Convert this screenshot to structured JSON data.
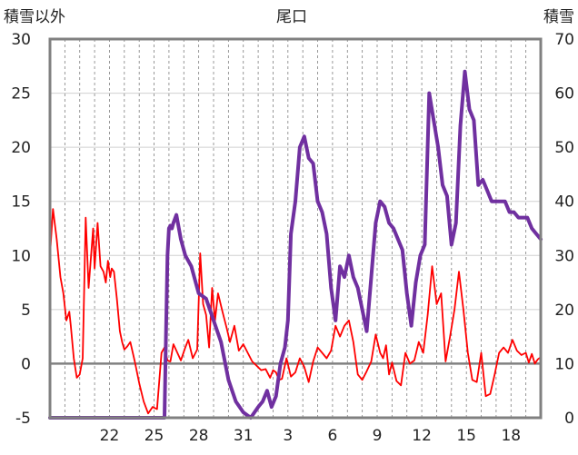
{
  "chart_data": {
    "type": "line",
    "title": "尾口",
    "left_axis_title": "積雪以外",
    "right_axis_title": "積雪",
    "x_tick_labels": [
      "22",
      "25",
      "28",
      "31",
      "3",
      "6",
      "9",
      "12",
      "15",
      "18"
    ],
    "x_tick_days": [
      4,
      7,
      10,
      13,
      16,
      19,
      22,
      25,
      28,
      31
    ],
    "x_range_days": [
      0,
      33
    ],
    "y_left": {
      "min": -5,
      "max": 30,
      "ticks": [
        -5,
        0,
        5,
        10,
        15,
        20,
        25,
        30
      ]
    },
    "y_right": {
      "min": 0,
      "max": 70,
      "ticks": [
        0,
        10,
        20,
        30,
        40,
        50,
        60,
        70
      ]
    },
    "grid": {
      "horizontal": true,
      "vertical_dashed": true
    },
    "colors": {
      "snow_series": "#7030a0",
      "temperature_series": "#ff0000",
      "zero_line": "#808080",
      "frame": "#808080"
    },
    "series": [
      {
        "axis": "left",
        "color": "#ff0000",
        "x": [
          0.0,
          0.2,
          0.45,
          0.7,
          0.9,
          1.1,
          1.3,
          1.4,
          1.6,
          1.8,
          2.0,
          2.2,
          2.4,
          2.6,
          2.9,
          3.0,
          3.2,
          3.4,
          3.6,
          3.75,
          3.9,
          4.05,
          4.15,
          4.3,
          4.5,
          4.7,
          4.85,
          5.0,
          5.2,
          5.4,
          5.7,
          6.0,
          6.3,
          6.6,
          6.9,
          7.2,
          7.5,
          7.7,
          7.9,
          8.1,
          8.3,
          8.5,
          8.8,
          9.1,
          9.3,
          9.6,
          9.9,
          10.1,
          10.3,
          10.5,
          10.7,
          10.9,
          11.1,
          11.3,
          11.6,
          11.9,
          12.1,
          12.4,
          12.7,
          13.0,
          13.3,
          13.6,
          13.9,
          14.2,
          14.5,
          14.8,
          15.0,
          15.2,
          15.4,
          15.6,
          15.9,
          16.2,
          16.5,
          16.8,
          17.1,
          17.4,
          17.7,
          18.0,
          18.3,
          18.6,
          18.9,
          19.2,
          19.5,
          19.8,
          20.1,
          20.4,
          20.7,
          21.0,
          21.3,
          21.6,
          21.9,
          22.2,
          22.4,
          22.6,
          22.8,
          23.0,
          23.3,
          23.6,
          23.9,
          24.2,
          24.5,
          24.8,
          25.1,
          25.4,
          25.7,
          26.0,
          26.3,
          26.6,
          26.9,
          27.2,
          27.5,
          27.8,
          28.1,
          28.4,
          28.7,
          29.0,
          29.3,
          29.6,
          29.9,
          30.2,
          30.5,
          30.8,
          31.1,
          31.4,
          31.7,
          32.0,
          32.2,
          32.4,
          32.6,
          32.8,
          33.0
        ],
        "y": [
          10.0,
          14.3,
          11.5,
          8.0,
          6.5,
          4.0,
          4.8,
          3.5,
          0.5,
          -1.3,
          -1.0,
          0.5,
          13.5,
          7.0,
          12.5,
          8.8,
          13.0,
          9.0,
          8.5,
          7.5,
          9.5,
          8.0,
          8.8,
          8.5,
          6.0,
          3.0,
          2.0,
          1.3,
          1.6,
          2.0,
          0.2,
          -1.8,
          -3.5,
          -4.6,
          -4.0,
          -4.2,
          1.0,
          1.5,
          0.3,
          0.2,
          1.8,
          1.2,
          0.3,
          1.5,
          2.2,
          0.5,
          1.3,
          10.2,
          5.5,
          4.5,
          1.5,
          7.0,
          4.0,
          6.5,
          4.8,
          3.2,
          2.0,
          3.5,
          1.2,
          1.8,
          1.0,
          0.2,
          -0.2,
          -0.6,
          -0.5,
          -1.3,
          -0.6,
          -0.8,
          -1.5,
          -1.4,
          0.5,
          -1.2,
          -0.8,
          0.5,
          -0.3,
          -1.7,
          0.2,
          1.5,
          1.0,
          0.5,
          1.2,
          3.5,
          2.5,
          3.5,
          4.0,
          2.0,
          -1.0,
          -1.5,
          -0.7,
          0.2,
          2.7,
          1.0,
          0.5,
          1.7,
          -1.0,
          0.1,
          -1.6,
          -2.0,
          1.0,
          0.0,
          0.3,
          2.0,
          1.0,
          4.5,
          9.0,
          5.5,
          6.5,
          0.2,
          2.5,
          5.0,
          8.5,
          5.0,
          1.0,
          -1.5,
          -1.7,
          1.0,
          -3.0,
          -2.8,
          -1.0,
          1.0,
          1.5,
          1.0,
          2.2,
          1.2,
          0.8,
          1.0,
          0.1,
          0.9,
          0.0,
          0.4,
          0.6
        ]
      },
      {
        "axis": "right",
        "color": "#7030a0",
        "x": [
          0.0,
          1.0,
          2.0,
          3.0,
          4.0,
          5.0,
          6.0,
          7.0,
          7.5,
          7.7,
          7.8,
          7.9,
          8.0,
          8.1,
          8.2,
          8.3,
          8.5,
          8.8,
          9.1,
          9.5,
          10.0,
          10.5,
          11.0,
          11.5,
          12.0,
          12.5,
          13.0,
          13.5,
          14.0,
          14.3,
          14.6,
          14.9,
          15.2,
          15.5,
          15.8,
          16.0,
          16.2,
          16.5,
          16.8,
          17.1,
          17.4,
          17.7,
          18.0,
          18.3,
          18.6,
          18.9,
          19.2,
          19.5,
          19.8,
          20.1,
          20.4,
          20.7,
          21.0,
          21.3,
          21.6,
          21.9,
          22.2,
          22.5,
          22.8,
          23.1,
          23.4,
          23.7,
          24.0,
          24.3,
          24.6,
          24.9,
          25.2,
          25.5,
          25.8,
          26.1,
          26.4,
          26.7,
          27.0,
          27.3,
          27.6,
          27.9,
          28.2,
          28.5,
          28.8,
          29.1,
          29.4,
          29.7,
          30.0,
          30.3,
          30.6,
          30.9,
          31.2,
          31.5,
          31.8,
          32.1,
          32.4,
          32.7,
          33.0
        ],
        "y": [
          0.0,
          0.0,
          0.0,
          0.0,
          0.0,
          0.0,
          0.0,
          0.0,
          0.0,
          0.0,
          15.0,
          30.0,
          35.0,
          35.5,
          35.0,
          36.0,
          37.5,
          33.0,
          30.0,
          28.0,
          23.0,
          22.0,
          18.0,
          14.0,
          7.0,
          3.0,
          1.0,
          0.0,
          2.0,
          3.0,
          5.0,
          2.0,
          4.0,
          10.0,
          13.0,
          18.0,
          34.0,
          40.0,
          50.0,
          52.0,
          48.0,
          47.0,
          40.0,
          38.0,
          34.0,
          24.0,
          18.0,
          28.0,
          26.0,
          30.0,
          26.0,
          24.0,
          20.0,
          16.0,
          26.0,
          36.0,
          40.0,
          39.0,
          36.0,
          35.0,
          33.0,
          31.0,
          23.0,
          17.0,
          25.0,
          30.0,
          32.0,
          60.0,
          55.0,
          50.0,
          43.0,
          41.0,
          32.0,
          36.0,
          54.0,
          64.0,
          57.0,
          55.0,
          43.0,
          44.0,
          42.0,
          40.0,
          40.0,
          40.0,
          40.0,
          38.0,
          38.0,
          37.0,
          37.0,
          37.0,
          35.0,
          34.0,
          33.0
        ]
      }
    ]
  }
}
